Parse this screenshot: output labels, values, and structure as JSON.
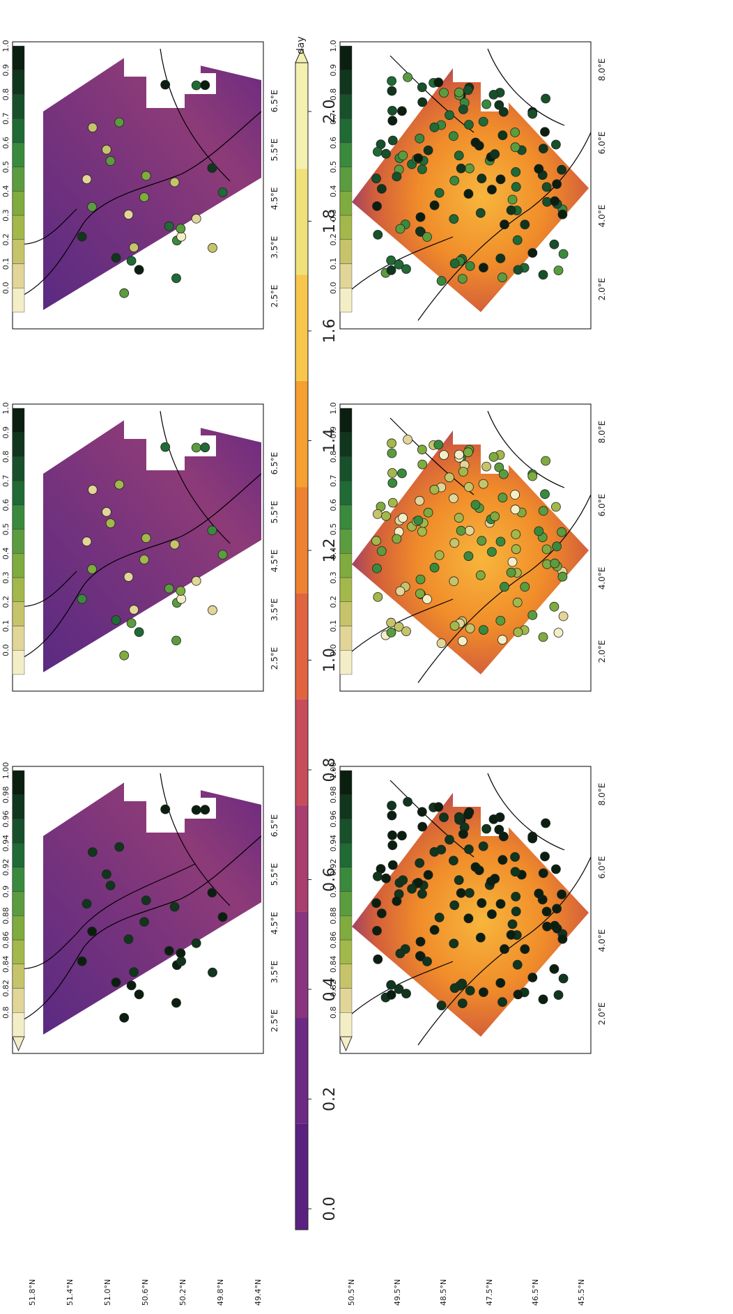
{
  "figure": {
    "orientation": "rotated-90-ccw",
    "colors": {
      "map_fill": [
        "#4a1a6b",
        "#6a2a82",
        "#8a3a7a",
        "#b24a5e",
        "#d65f3c",
        "#f08c2a",
        "#f7b63c",
        "#f8df7a",
        "#fbf2b8"
      ],
      "land_background": "#ffffff",
      "outline": "#000000",
      "marker_dark": "#0d2b16",
      "marker_mid": "#4e9a47",
      "marker_light": "#f3f0c2"
    }
  },
  "shared_colorbar": {
    "label": "day",
    "ticks": [
      "0.0",
      "0.2",
      "0.4",
      "0.6",
      "0.8",
      "1.0",
      "1.2",
      "1.4",
      "1.6",
      "1.8",
      "2.0"
    ],
    "colors": [
      "#5a2280",
      "#6c2a85",
      "#8a3480",
      "#aa3e6e",
      "#c84d5a",
      "#e1643f",
      "#ef8230",
      "#f5a030",
      "#f7c64b",
      "#efe07a",
      "#f3f0b0"
    ]
  },
  "axes": {
    "top_row": {
      "lat_ticks": [
        "51.8°N",
        "51.4°N",
        "51.0°N",
        "50.6°N",
        "50.2°N",
        "49.8°N",
        "49.4°N"
      ],
      "lon_ticks": [
        "2.5°E",
        "3.5°E",
        "4.5°E",
        "5.5°E",
        "6.5°E"
      ]
    },
    "bottom_row": {
      "lat_ticks": [
        "50.5°N",
        "49.5°N",
        "48.5°N",
        "47.5°N",
        "46.5°N",
        "45.5°N"
      ],
      "lon_ticks": [
        "2.0°E",
        "4.0°E",
        "6.0°E",
        "8.0°E"
      ]
    }
  },
  "panel_colorbars": {
    "left_column": {
      "ticks": [
        "1.00",
        "0.98",
        "0.96",
        "0.94",
        "0.92",
        "0.9",
        "0.88",
        "0.86",
        "0.84",
        "0.82",
        "0.8"
      ],
      "colors": [
        "#0b1f10",
        "#10361d",
        "#17502a",
        "#1f6a35",
        "#3a8a3d",
        "#5b9c3f",
        "#7fab3f",
        "#a3b84a",
        "#c6c46a",
        "#e2d598",
        "#f4eec6"
      ]
    },
    "other_columns": {
      "ticks": [
        "1.0",
        "0.9",
        "0.8",
        "0.7",
        "0.6",
        "0.5",
        "0.4",
        "0.3",
        "0.2",
        "0.1",
        "0.0"
      ],
      "colors": [
        "#0b1f10",
        "#10361d",
        "#17502a",
        "#1f6a35",
        "#3a8a3d",
        "#5b9c3f",
        "#7fab3f",
        "#a3b84a",
        "#c6c46a",
        "#e2d598",
        "#f4eec6"
      ]
    }
  }
}
